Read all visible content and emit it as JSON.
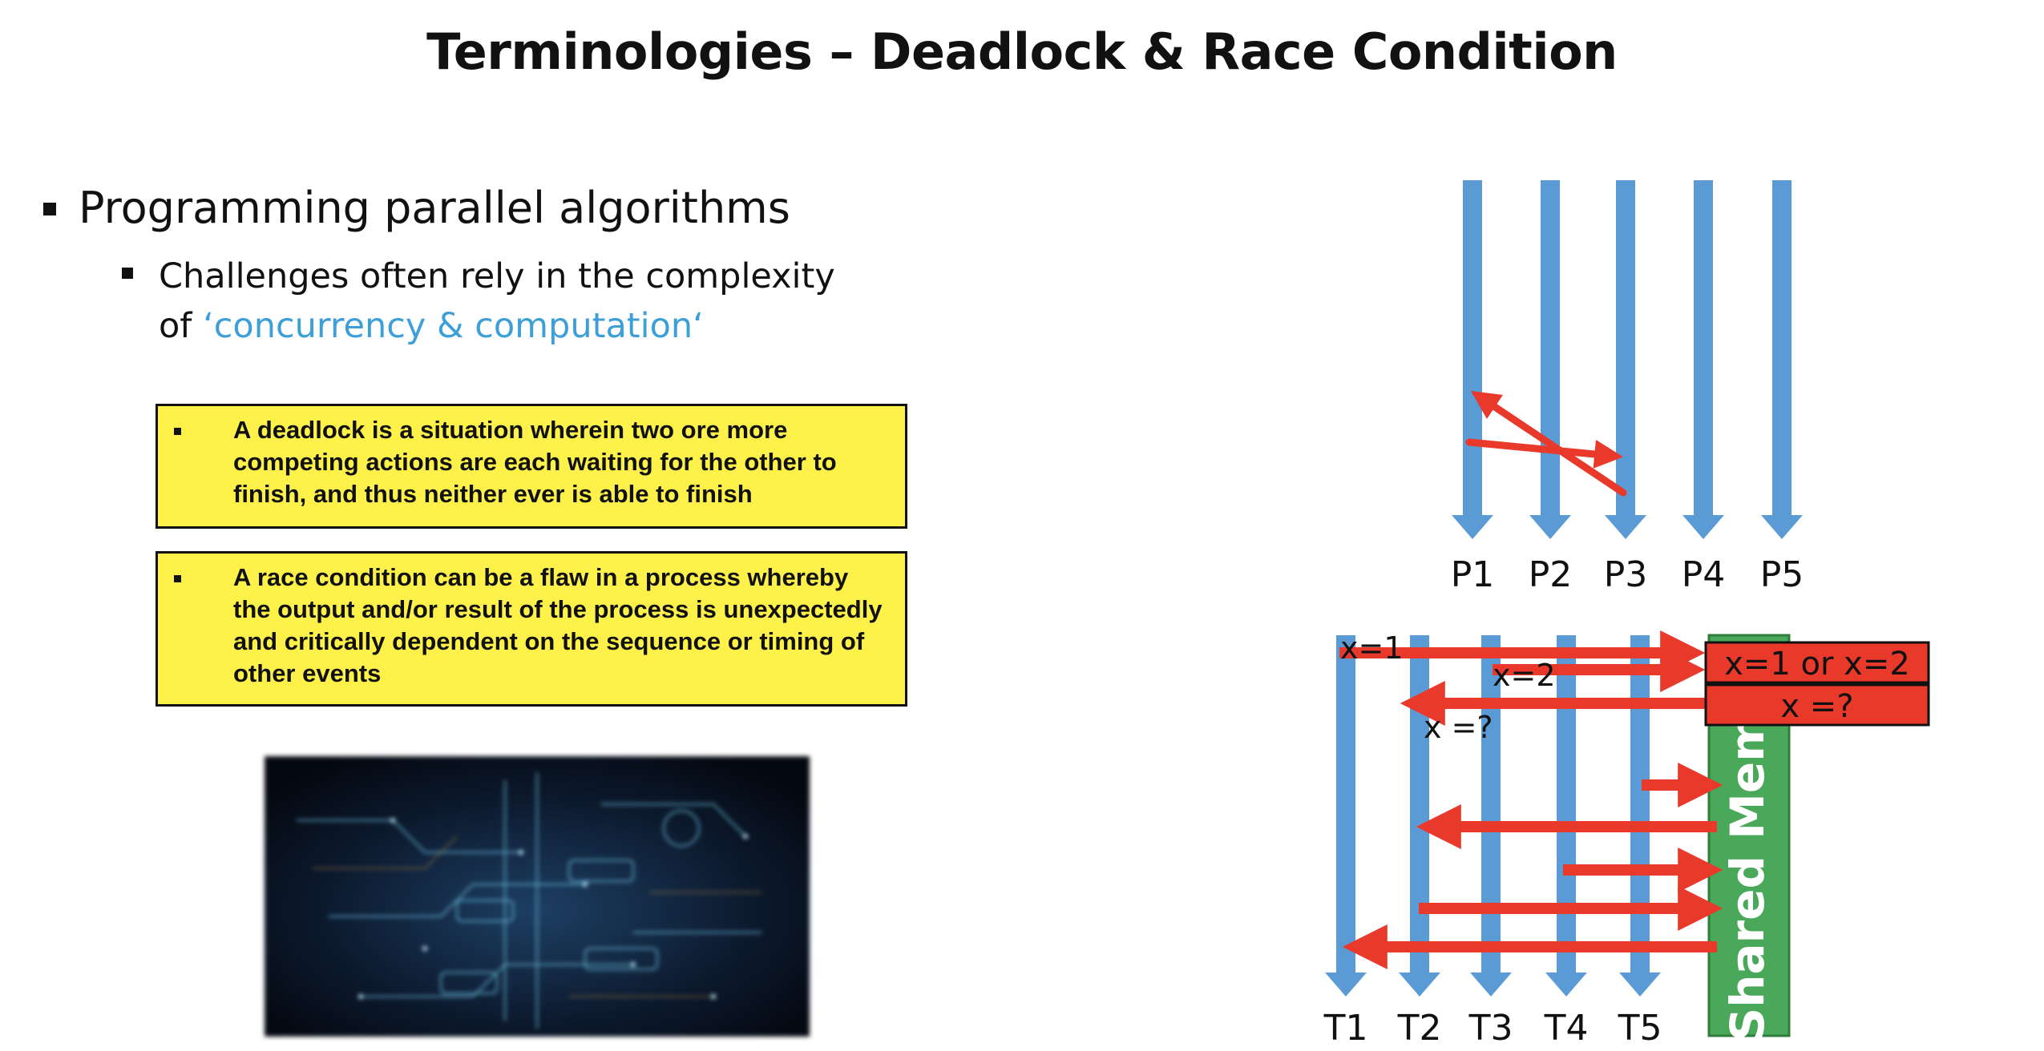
{
  "slide": {
    "title": "Terminologies – Deadlock & Race Condition",
    "bullet_level1": "Programming parallel algorithms",
    "bullet_level2_line1": "Challenges often rely in the complexity",
    "bullet_level2_prefix": "of ",
    "bullet_level2_highlight": "‘concurrency & computation‘",
    "deadlock_definition": "A deadlock is a situation wherein two ore more competing actions are each waiting for the other to finish, and thus neither ever is able to finish",
    "race_definition": "A race condition can be a flaw in a process whereby the output and/or result of the process is unexpectedly and critically dependent on the sequence or timing of other events"
  },
  "deadlock_diagram": {
    "process_labels": [
      "P1",
      "P2",
      "P3",
      "P4",
      "P5"
    ]
  },
  "race_diagram": {
    "thread_labels": [
      "T1",
      "T2",
      "T3",
      "T4",
      "T5"
    ],
    "write1_label": "x=1",
    "write2_label": "x=2",
    "read_label": "x =?",
    "memory_result_label": "x=1 or x=2",
    "memory_read_label": "x =?",
    "shared_memory_label": "Shared Mem"
  },
  "colors": {
    "lane_blue": "#5b9bd5",
    "arrow_red": "#e8392a",
    "memory_green": "#4aa85a",
    "callout_yellow": "#fdf14a",
    "accent_blue": "#3d9fd8"
  }
}
